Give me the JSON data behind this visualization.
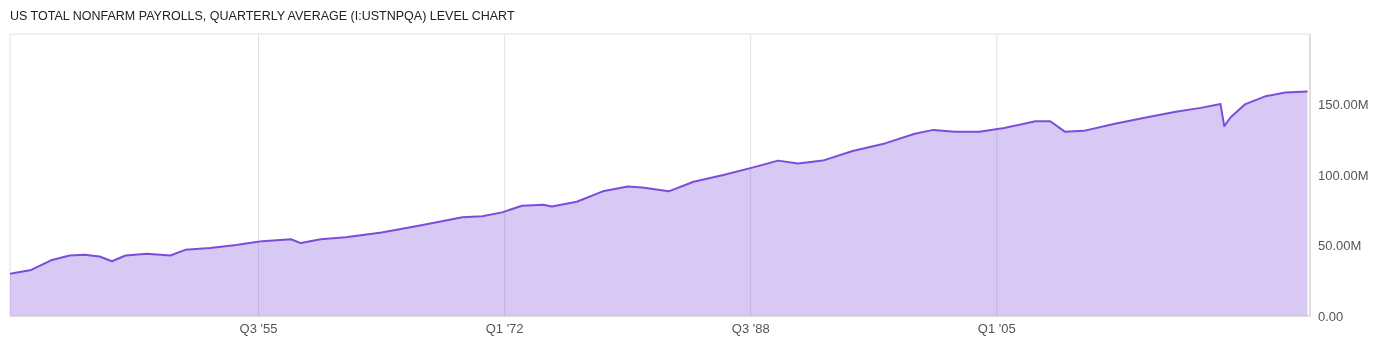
{
  "chart_data": {
    "type": "area",
    "title": "US TOTAL NONFARM PAYROLLS, QUARTERLY AVERAGE (I:USTNPQA) LEVEL CHART",
    "x": [
      "1938-11",
      "1940-04",
      "1941-08",
      "1942-11",
      "1943-11",
      "1944-11",
      "1945-09",
      "1946-08",
      "1948-01",
      "1949-08",
      "1950-08",
      "1952-04",
      "1954-01",
      "1955-10",
      "1957-09",
      "1958-05",
      "1959-09",
      "1961-05",
      "1963-10",
      "1966-07",
      "1969-03",
      "1970-07",
      "1971-11",
      "1973-03",
      "1974-08",
      "1975-03",
      "1976-11",
      "1978-08",
      "1980-04",
      "1981-04",
      "1983-01",
      "1984-09",
      "1986-09",
      "1988-09",
      "1990-05",
      "1991-09",
      "1993-05",
      "1995-05",
      "1997-07",
      "1999-07",
      "2000-10",
      "2002-03",
      "2003-11",
      "2005-07",
      "2007-08",
      "2008-08",
      "2009-08",
      "2010-11",
      "2012-11",
      "2015-01",
      "2017-01",
      "2018-09",
      "2020-01",
      "2020-04",
      "2020-09",
      "2021-09",
      "2023-01",
      "2024-05",
      "2025-11"
    ],
    "series": [
      {
        "color": "#7c4dda",
        "values": [
          30,
          32.7,
          39.5,
          42.9,
          43.5,
          42.2,
          38.8,
          42.9,
          44.2,
          42.9,
          46.9,
          48.3,
          50.3,
          53.1,
          54.4,
          51.7,
          54.4,
          55.8,
          59.2,
          64.6,
          70.1,
          70.7,
          73.5,
          78.2,
          78.9,
          77.6,
          81,
          88.4,
          91.8,
          91.2,
          88.4,
          95.2,
          100,
          105.4,
          110.2,
          108.2,
          110.2,
          117,
          122.4,
          129.3,
          132,
          130.6,
          130.6,
          133.3,
          138.1,
          138.1,
          130.6,
          131.3,
          136.1,
          140.8,
          144.9,
          147.6,
          150.3,
          134.7,
          140.8,
          150.3,
          155.8,
          158.5,
          159.2
        ]
      }
    ],
    "xlim": [
      "1938-11",
      "2026-01"
    ],
    "xticks": [
      {
        "value": "1955-07",
        "label": "Q3 '55"
      },
      {
        "value": "1972-01",
        "label": "Q1 '72"
      },
      {
        "value": "1988-07",
        "label": "Q3 '88"
      },
      {
        "value": "2005-01",
        "label": "Q1 '05"
      }
    ],
    "ylim": [
      0,
      200
    ],
    "yticks": [
      {
        "value": 0,
        "label": "0.00"
      },
      {
        "value": 50,
        "label": "50.00M"
      },
      {
        "value": 100,
        "label": "100.00M"
      },
      {
        "value": 150,
        "label": "150.00M"
      }
    ],
    "grid": true,
    "legend": false,
    "marker": "none",
    "line_style": "solid"
  }
}
